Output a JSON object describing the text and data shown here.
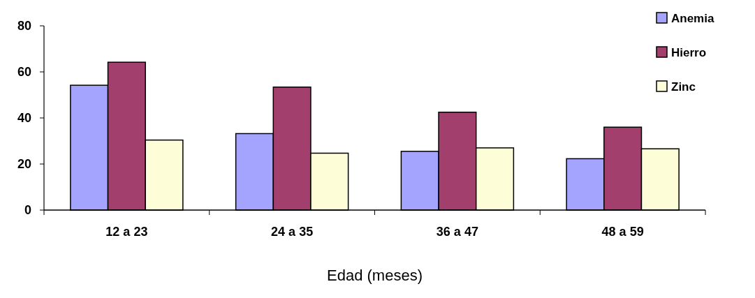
{
  "chart_data": {
    "type": "bar",
    "xlabel": "Edad (meses)",
    "categories": [
      "12 a 23",
      "24 a 35",
      "36 a 47",
      "48 a 59"
    ],
    "series": [
      {
        "name": "Anemia",
        "color": "#a4a4ff",
        "values": [
          54.2,
          33.2,
          25.5,
          22.3
        ]
      },
      {
        "name": "Hierro",
        "color": "#a23f6d",
        "values": [
          64.2,
          53.4,
          42.5,
          36.0
        ]
      },
      {
        "name": "Zinc",
        "color": "#fdfdd8",
        "values": [
          30.4,
          24.7,
          27.0,
          26.6
        ]
      }
    ],
    "ylim": [
      0,
      80
    ],
    "yticks": [
      0,
      20,
      40,
      60,
      80
    ],
    "grid": false,
    "legend": "top right"
  }
}
